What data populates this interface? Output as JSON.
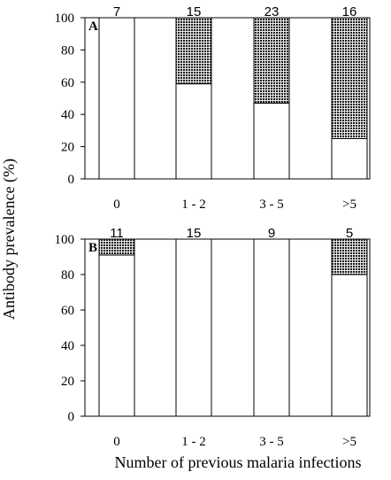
{
  "chart_data": [
    {
      "type": "bar",
      "stacked": true,
      "panel_label": "A",
      "categories": [
        "0",
        "1 - 2",
        "3 - 5",
        ">5"
      ],
      "counts": [
        "7",
        "15",
        "23",
        "16"
      ],
      "series": [
        {
          "values": [
            100,
            59,
            47,
            25
          ],
          "color": "#ffffff",
          "pattern": "none"
        },
        {
          "values": [
            0,
            41,
            53,
            75
          ],
          "color": "#3a3a3a",
          "pattern": "dense-dots"
        }
      ],
      "ylim": [
        0,
        100
      ],
      "yticks": [
        "0",
        "20",
        "40",
        "60",
        "80",
        "100"
      ]
    },
    {
      "type": "bar",
      "stacked": true,
      "panel_label": "B",
      "categories": [
        "0",
        "1 - 2",
        "3 - 5",
        ">5"
      ],
      "counts": [
        "11",
        "15",
        "9",
        "5"
      ],
      "series": [
        {
          "values": [
            91,
            100,
            100,
            80
          ],
          "color": "#ffffff",
          "pattern": "none"
        },
        {
          "values": [
            9,
            0,
            0,
            20
          ],
          "color": "#3a3a3a",
          "pattern": "dense-dots"
        }
      ],
      "ylim": [
        0,
        100
      ],
      "yticks": [
        "0",
        "20",
        "40",
        "60",
        "80",
        "100"
      ]
    }
  ],
  "ylabel": "Antibody prevalence (%)",
  "xlabel": "Number of previous malaria infections"
}
